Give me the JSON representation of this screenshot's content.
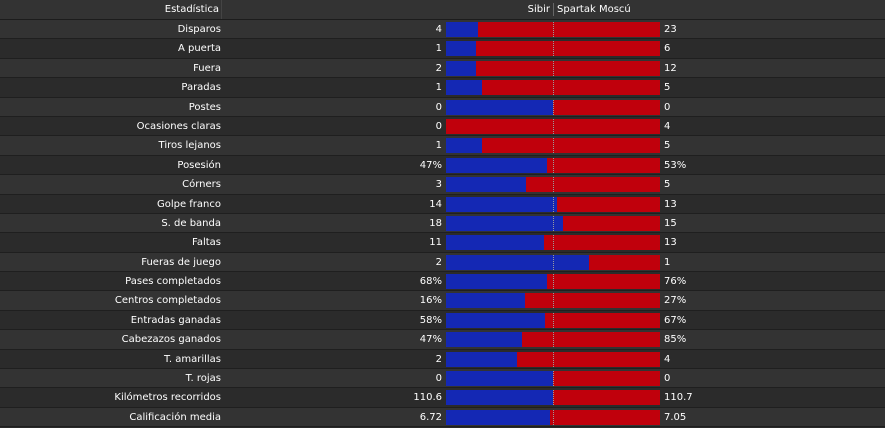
{
  "header": {
    "stat_label": "Estadística",
    "home_team": "Sibir",
    "away_team": "Spartak Moscú"
  },
  "colors": {
    "home": "#1428b4",
    "away": "#c0000c"
  },
  "stats": [
    {
      "label": "Disparos",
      "home": "4",
      "away": "23",
      "home_share": 0.15
    },
    {
      "label": "A puerta",
      "home": "1",
      "away": "6",
      "home_share": 0.14
    },
    {
      "label": "Fuera",
      "home": "2",
      "away": "12",
      "home_share": 0.14
    },
    {
      "label": "Paradas",
      "home": "1",
      "away": "5",
      "home_share": 0.17
    },
    {
      "label": "Postes",
      "home": "0",
      "away": "0",
      "home_share": 0.5
    },
    {
      "label": "Ocasiones claras",
      "home": "0",
      "away": "4",
      "home_share": 0.0
    },
    {
      "label": "Tiros lejanos",
      "home": "1",
      "away": "5",
      "home_share": 0.17
    },
    {
      "label": "Posesión",
      "home": "47%",
      "away": "53%",
      "home_share": 0.47
    },
    {
      "label": "Córners",
      "home": "3",
      "away": "5",
      "home_share": 0.375
    },
    {
      "label": "Golpe franco",
      "home": "14",
      "away": "13",
      "home_share": 0.52
    },
    {
      "label": "S. de banda",
      "home": "18",
      "away": "15",
      "home_share": 0.545
    },
    {
      "label": "Faltas",
      "home": "11",
      "away": "13",
      "home_share": 0.46
    },
    {
      "label": "Fueras de juego",
      "home": "2",
      "away": "1",
      "home_share": 0.667
    },
    {
      "label": "Pases completados",
      "home": "68%",
      "away": "76%",
      "home_share": 0.47
    },
    {
      "label": "Centros completados",
      "home": "16%",
      "away": "27%",
      "home_share": 0.37
    },
    {
      "label": "Entradas ganadas",
      "home": "58%",
      "away": "67%",
      "home_share": 0.464
    },
    {
      "label": "Cabezazos ganados",
      "home": "47%",
      "away": "85%",
      "home_share": 0.356
    },
    {
      "label": "T. amarillas",
      "home": "2",
      "away": "4",
      "home_share": 0.333
    },
    {
      "label": "T. rojas",
      "home": "0",
      "away": "0",
      "home_share": 0.5
    },
    {
      "label": "Kilómetros recorridos",
      "home": "110.6",
      "away": "110.7",
      "home_share": 0.4995
    },
    {
      "label": "Calificación media",
      "home": "6.72",
      "away": "7.05",
      "home_share": 0.488
    }
  ]
}
